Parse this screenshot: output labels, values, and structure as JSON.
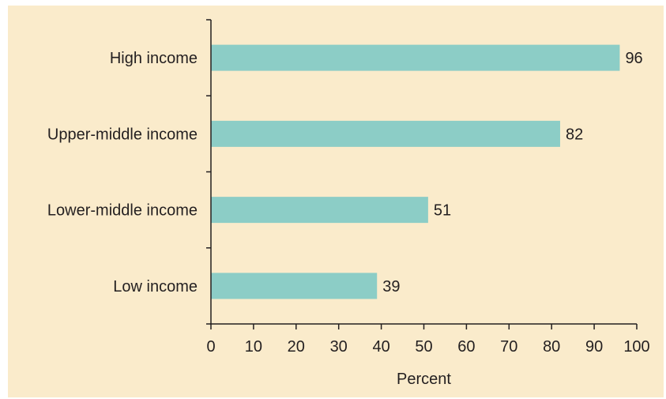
{
  "colors": {
    "background": "#faebcb",
    "bar": "#8ccdc6",
    "axis": "#231f20"
  },
  "chart_data": {
    "type": "bar",
    "orientation": "horizontal",
    "categories": [
      "High income",
      "Upper-middle income",
      "Lower-middle income",
      "Low income"
    ],
    "values": [
      96,
      82,
      51,
      39
    ],
    "data_labels": [
      "96",
      "82",
      "51",
      "39"
    ],
    "xlabel": "Percent",
    "xlim": [
      0,
      100
    ],
    "x_ticks": [
      "0",
      "10",
      "20",
      "30",
      "40",
      "50",
      "60",
      "70",
      "80",
      "90",
      "100"
    ],
    "grid": false,
    "legend": "none"
  }
}
